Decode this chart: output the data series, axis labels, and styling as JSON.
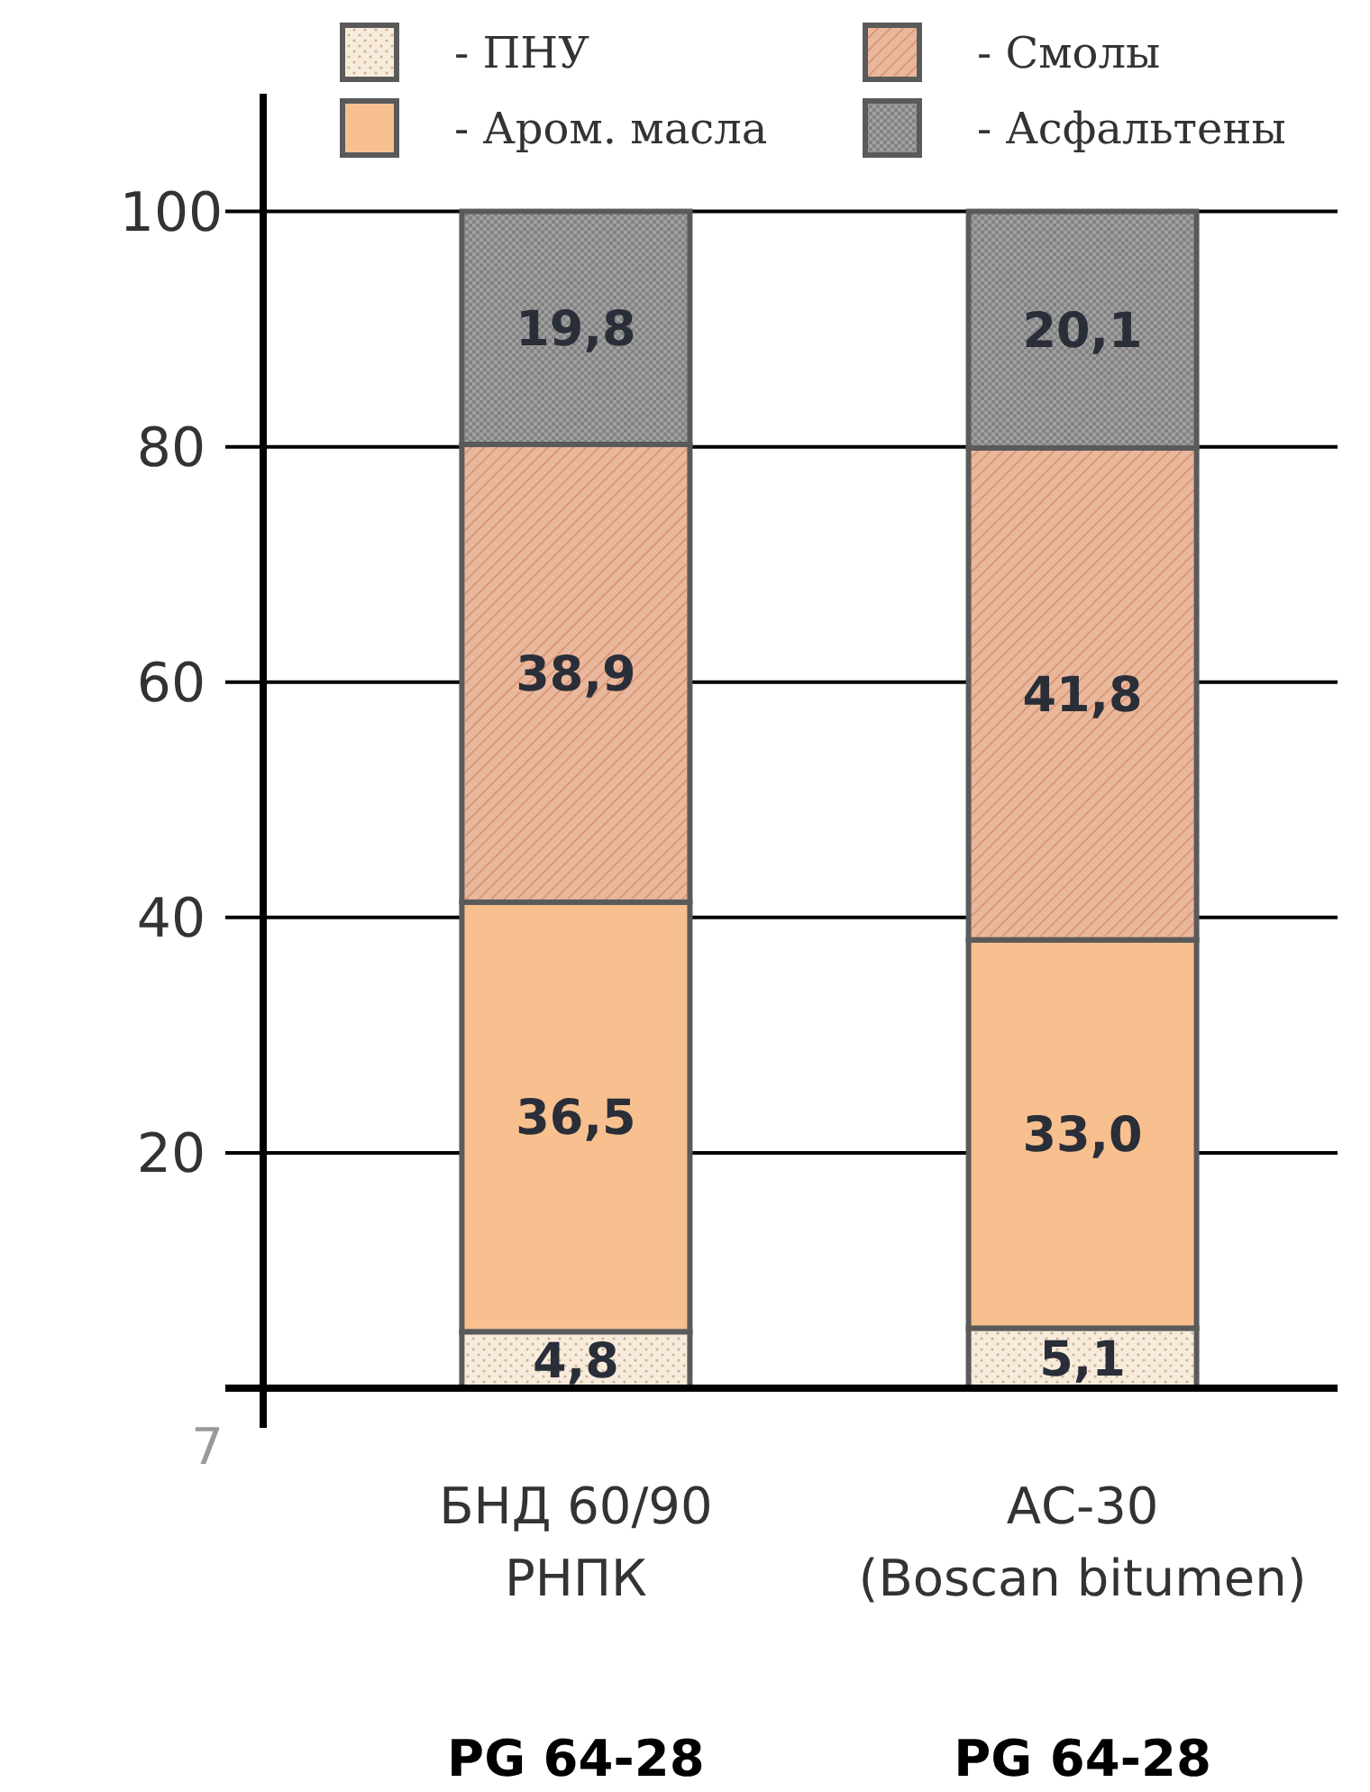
{
  "chart_data": {
    "type": "bar",
    "stacked": true,
    "categories": [
      "БНД 60/90\nРНПК",
      "АС-30\n(Boscan bitumen)"
    ],
    "series": [
      {
        "name": "- ПНУ",
        "color": "#f7ecdc",
        "values": [
          4.8,
          5.1
        ],
        "value_labels": [
          "4,8",
          "5,1"
        ]
      },
      {
        "name": "- Аром. масла",
        "color": "#f8c08e",
        "values": [
          36.5,
          33.0
        ],
        "value_labels": [
          "36,5",
          "33,0"
        ]
      },
      {
        "name": "- Смолы",
        "color": "#e9b89c",
        "values": [
          38.9,
          41.8
        ],
        "value_labels": [
          "38,9",
          "41,8"
        ]
      },
      {
        "name": "- Асфальтены",
        "color": "#a0a0a0",
        "values": [
          19.8,
          20.1
        ],
        "value_labels": [
          "19,8",
          "20,1"
        ]
      }
    ],
    "ylim": [
      0,
      110
    ],
    "yticks": [
      {
        "value": 0,
        "label": null
      },
      20,
      40,
      60,
      80,
      100
    ],
    "grid": "y",
    "legend": "top",
    "annotations": [
      "7",
      "PG 64-28",
      "PG 64-28"
    ]
  }
}
